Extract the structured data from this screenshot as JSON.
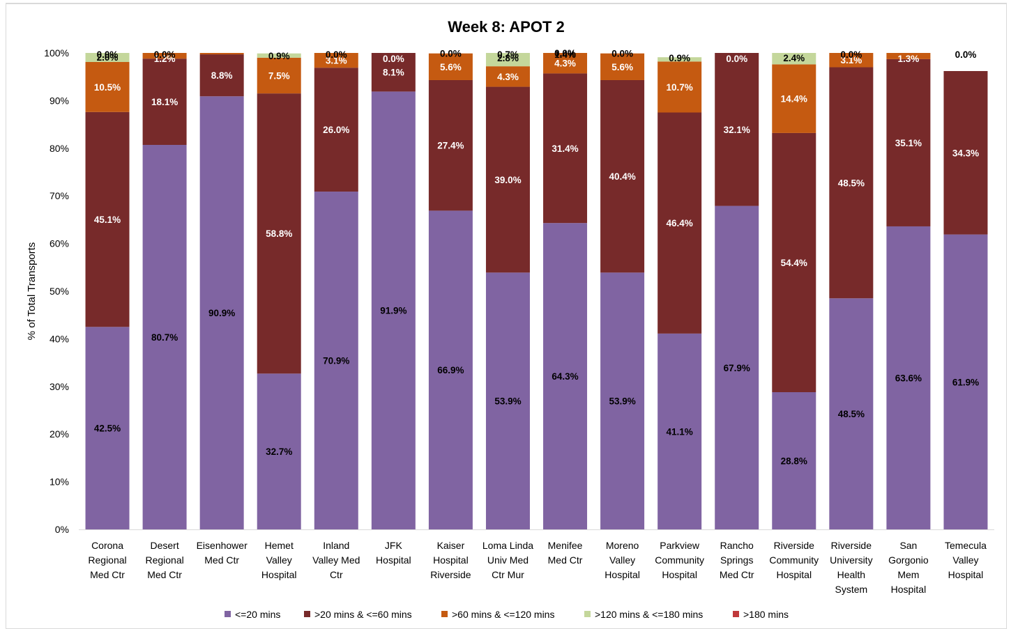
{
  "chart_data": {
    "type": "bar",
    "stacked": true,
    "title": "Week 8: APOT 2",
    "ylabel": "% of Total Transports",
    "xlabel": "",
    "ylim": [
      0,
      100
    ],
    "yticks": [
      "0%",
      "10%",
      "20%",
      "30%",
      "40%",
      "50%",
      "60%",
      "70%",
      "80%",
      "90%",
      "100%"
    ],
    "grid": false,
    "legend_position": "bottom",
    "categories": [
      [
        "Corona",
        "Regional",
        "Med Ctr"
      ],
      [
        "Desert",
        "Regional",
        "Med Ctr"
      ],
      [
        "Eisenhower",
        "Med Ctr"
      ],
      [
        "Hemet",
        "Valley",
        "Hospital"
      ],
      [
        "Inland",
        "Valley Med",
        "Ctr"
      ],
      [
        "JFK",
        "Hospital"
      ],
      [
        "Kaiser",
        "Hospital",
        "Riverside"
      ],
      [
        "Loma Linda",
        "Univ Med",
        "Ctr Mur"
      ],
      [
        "Menifee",
        "Med Ctr"
      ],
      [
        "Moreno",
        "Valley",
        "Hospital"
      ],
      [
        "Parkview",
        "Community",
        "Hospital"
      ],
      [
        "Rancho",
        "Springs",
        "Med Ctr"
      ],
      [
        "Riverside",
        "Community",
        "Hospital"
      ],
      [
        "Riverside",
        "University",
        "Health",
        "System"
      ],
      [
        "San",
        "Gorgonio",
        "Mem",
        "Hospital"
      ],
      [
        "Temecula",
        "Valley",
        "Hospital"
      ]
    ],
    "series": [
      {
        "name": "<=20 mins",
        "color": "#8064a2",
        "label_color": "#000000",
        "values": [
          42.5,
          80.7,
          90.9,
          32.7,
          70.9,
          91.9,
          66.9,
          53.9,
          64.3,
          53.9,
          41.1,
          67.9,
          28.8,
          48.5,
          63.6,
          61.9
        ]
      },
      {
        "name": ">20 mins & <=60 mins",
        "color": "#772a2a",
        "label_color": "#ffffff",
        "values": [
          45.1,
          18.1,
          8.8,
          58.8,
          26.0,
          8.1,
          27.4,
          39.0,
          31.4,
          40.4,
          46.4,
          32.1,
          54.4,
          48.5,
          35.1,
          34.3
        ]
      },
      {
        "name": ">60 mins & <=120 mins",
        "color": "#c55a11",
        "label_color": "#ffffff",
        "values": [
          10.5,
          1.2,
          0.3,
          7.5,
          3.1,
          0.0,
          5.6,
          4.3,
          4.3,
          5.6,
          10.7,
          0.0,
          14.4,
          3.1,
          1.3,
          0.0
        ]
      },
      {
        "name": ">120 mins & <=180 mins",
        "color": "#c4d79b",
        "label_color": "#000000",
        "values": [
          2.0,
          0.0,
          0.0,
          0.9,
          0.0,
          0.0,
          0.0,
          2.8,
          0.0,
          0.0,
          0.9,
          0.0,
          2.4,
          0.0,
          0.0,
          0.0
        ]
      },
      {
        "name": ">180 mins",
        "color": "#c0393b",
        "label_color": "#000000",
        "values": [
          0.0,
          0.0,
          0.0,
          0.0,
          0.0,
          0.0,
          0.0,
          0.7,
          1.4,
          0.0,
          0.0,
          0.0,
          0.0,
          0.0,
          0.0,
          0.0
        ]
      }
    ],
    "data_labels": [
      [
        [
          "42.5%"
        ],
        [
          "45.1%"
        ],
        [
          "10.5%"
        ],
        [
          "2.0%"
        ],
        [
          "0.0%"
        ]
      ],
      [
        [
          "80.7%"
        ],
        [
          "18.1%"
        ],
        [
          "1.2%"
        ],
        [],
        [
          "0.0%"
        ]
      ],
      [
        [
          "90.9%"
        ],
        [
          "8.8%"
        ],
        [],
        [],
        []
      ],
      [
        [
          "32.7%"
        ],
        [
          "58.8%"
        ],
        [
          "7.5%"
        ],
        [
          "0.9%"
        ],
        []
      ],
      [
        [
          "70.9%"
        ],
        [
          "26.0%"
        ],
        [
          "3.1%"
        ],
        [],
        [
          "0.0%"
        ]
      ],
      [
        [
          "91.9%"
        ],
        [
          "8.1%"
        ],
        [
          "0.0%"
        ],
        [],
        []
      ],
      [
        [
          "66.9%"
        ],
        [
          "27.4%"
        ],
        [
          "5.6%"
        ],
        [
          "0.0%"
        ],
        []
      ],
      [
        [
          "53.9%"
        ],
        [
          "39.0%"
        ],
        [
          "4.3%"
        ],
        [
          "2.8%"
        ],
        [
          "0.7%"
        ]
      ],
      [
        [
          "64.3%"
        ],
        [
          "31.4%"
        ],
        [
          "4.3%"
        ],
        [
          "0.0%"
        ],
        [
          "1.4%"
        ]
      ],
      [
        [
          "53.9%"
        ],
        [
          "40.4%"
        ],
        [
          "5.6%"
        ],
        [
          "0.0%"
        ],
        []
      ],
      [
        [
          "41.1%"
        ],
        [
          "46.4%"
        ],
        [
          "10.7%"
        ],
        [
          "0.9%"
        ],
        []
      ],
      [
        [
          "67.9%"
        ],
        [
          "32.1%"
        ],
        [
          "0.0%"
        ],
        [],
        []
      ],
      [
        [
          "28.8%"
        ],
        [
          "54.4%"
        ],
        [
          "14.4%"
        ],
        [
          "2.4%"
        ],
        []
      ],
      [
        [
          "48.5%"
        ],
        [
          "48.5%"
        ],
        [
          "3.1%"
        ],
        [],
        [
          "0.0%"
        ]
      ],
      [
        [
          "63.6%"
        ],
        [
          "35.1%"
        ],
        [
          "1.3%"
        ],
        [],
        []
      ],
      [
        [
          "61.9%"
        ],
        [
          "34.3%"
        ],
        [],
        [],
        [
          "0.0%"
        ]
      ]
    ]
  }
}
